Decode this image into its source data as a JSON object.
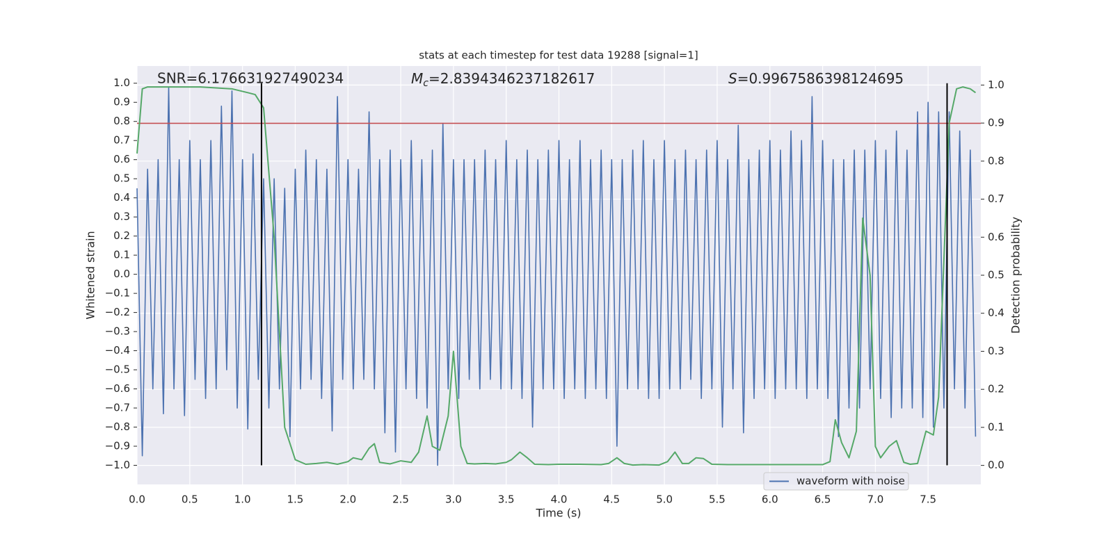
{
  "chart_data": {
    "type": "line",
    "title": "stats at each timestep for test data 19288 [signal=1]",
    "xlabel": "Time (s)",
    "ylabel": "Whitened strain",
    "y2label": "Detection probability",
    "annotations": [
      "SNR=6.176631927490234",
      {
        "symbol": "M",
        "subscript": "c",
        "text": "=2.8394346237182617"
      },
      {
        "symbol": "S",
        "text": "=0.9967586398124695"
      }
    ],
    "xlim": [
      0,
      8
    ],
    "ylim": [
      -1.1,
      1.09
    ],
    "y2lim": [
      -0.05,
      1.05
    ],
    "xticks": [
      {
        "value": 0,
        "label": "0.0"
      },
      {
        "value": 0.5,
        "label": "0.5"
      },
      {
        "value": 1,
        "label": "1.0"
      },
      {
        "value": 1.5,
        "label": "1.5"
      },
      {
        "value": 2,
        "label": "2.0"
      },
      {
        "value": 2.5,
        "label": "2.5"
      },
      {
        "value": 3,
        "label": "3.0"
      },
      {
        "value": 3.5,
        "label": "3.5"
      },
      {
        "value": 4,
        "label": "4.0"
      },
      {
        "value": 4.5,
        "label": "4.5"
      },
      {
        "value": 5,
        "label": "5.0"
      },
      {
        "value": 5.5,
        "label": "5.5"
      },
      {
        "value": 6,
        "label": "6.0"
      },
      {
        "value": 6.5,
        "label": "6.5"
      },
      {
        "value": 7,
        "label": "7.0"
      },
      {
        "value": 7.5,
        "label": "7.5"
      }
    ],
    "yticks": [
      {
        "value": 1,
        "label": "1.0"
      },
      {
        "value": 0.9,
        "label": "0.9"
      },
      {
        "value": 0.8,
        "label": "0.8"
      },
      {
        "value": 0.7,
        "label": "0.7"
      },
      {
        "value": 0.6,
        "label": "0.6"
      },
      {
        "value": 0.5,
        "label": "0.5"
      },
      {
        "value": 0.4,
        "label": "0.4"
      },
      {
        "value": 0.3,
        "label": "0.3"
      },
      {
        "value": 0.2,
        "label": "0.2"
      },
      {
        "value": 0.1,
        "label": "0.1"
      },
      {
        "value": 0,
        "label": "0.0"
      },
      {
        "value": -0.1,
        "label": "−0.1"
      },
      {
        "value": -0.2,
        "label": "−0.2"
      },
      {
        "value": -0.3,
        "label": "−0.3"
      },
      {
        "value": -0.4,
        "label": "−0.4"
      },
      {
        "value": -0.5,
        "label": "−0.5"
      },
      {
        "value": -0.6,
        "label": "−0.6"
      },
      {
        "value": -0.7,
        "label": "−0.7"
      },
      {
        "value": -0.8,
        "label": "−0.8"
      },
      {
        "value": -0.9,
        "label": "−0.9"
      },
      {
        "value": -1,
        "label": "−1.0"
      }
    ],
    "y2ticks": [
      {
        "value": 1,
        "label": "1.0"
      },
      {
        "value": 0.9,
        "label": "0.9"
      },
      {
        "value": 0.8,
        "label": "0.8"
      },
      {
        "value": 0.7,
        "label": "0.7"
      },
      {
        "value": 0.6,
        "label": "0.6"
      },
      {
        "value": 0.5,
        "label": "0.5"
      },
      {
        "value": 0.4,
        "label": "0.4"
      },
      {
        "value": 0.3,
        "label": "0.3"
      },
      {
        "value": 0.2,
        "label": "0.2"
      },
      {
        "value": 0.1,
        "label": "0.1"
      },
      {
        "value": 0,
        "label": "0.0"
      }
    ],
    "grid": true,
    "legend": "lower right",
    "threshold": {
      "value": 0.79,
      "color": "#c44e52"
    },
    "vlines": {
      "x": [
        1.18,
        7.68
      ],
      "ylim": [
        -1,
        1
      ],
      "color": "#000000"
    },
    "series": [
      {
        "name": "waveform with noise",
        "color": "#4c72b0",
        "x": [
          0,
          0.05,
          0.1,
          0.15,
          0.2,
          0.25,
          0.3,
          0.35,
          0.4,
          0.45,
          0.5,
          0.55,
          0.6,
          0.65,
          0.7,
          0.75,
          0.8,
          0.85,
          0.9,
          0.95,
          1,
          1.05,
          1.1,
          1.15,
          1.2,
          1.25,
          1.3,
          1.35,
          1.4,
          1.45,
          1.5,
          1.55,
          1.6,
          1.65,
          1.7,
          1.75,
          1.8,
          1.85,
          1.9,
          1.95,
          2,
          2.05,
          2.1,
          2.15,
          2.2,
          2.25,
          2.3,
          2.35,
          2.4,
          2.45,
          2.5,
          2.55,
          2.6,
          2.65,
          2.7,
          2.75,
          2.8,
          2.85,
          2.9,
          2.95,
          3,
          3.05,
          3.1,
          3.15,
          3.2,
          3.25,
          3.3,
          3.35,
          3.4,
          3.45,
          3.5,
          3.55,
          3.6,
          3.65,
          3.7,
          3.75,
          3.8,
          3.85,
          3.9,
          3.95,
          4,
          4.05,
          4.1,
          4.15,
          4.2,
          4.25,
          4.3,
          4.35,
          4.4,
          4.45,
          4.5,
          4.55,
          4.6,
          4.65,
          4.7,
          4.75,
          4.8,
          4.85,
          4.9,
          4.95,
          5,
          5.05,
          5.1,
          5.15,
          5.2,
          5.25,
          5.3,
          5.35,
          5.4,
          5.45,
          5.5,
          5.55,
          5.6,
          5.65,
          5.7,
          5.75,
          5.8,
          5.85,
          5.9,
          5.95,
          6,
          6.05,
          6.1,
          6.15,
          6.2,
          6.25,
          6.3,
          6.35,
          6.4,
          6.45,
          6.5,
          6.55,
          6.6,
          6.65,
          6.7,
          6.75,
          6.8,
          6.85,
          6.9,
          6.95,
          7,
          7.05,
          7.1,
          7.15,
          7.2,
          7.25,
          7.3,
          7.35,
          7.4,
          7.45,
          7.5,
          7.55,
          7.6,
          7.65,
          7.7,
          7.75,
          7.8,
          7.85,
          7.9,
          7.95
        ],
        "values": [
          0.45,
          -0.95,
          0.55,
          -0.6,
          0.6,
          -0.73,
          0.98,
          -0.6,
          0.6,
          -0.74,
          0.7,
          -0.55,
          0.6,
          -0.65,
          0.7,
          -0.6,
          0.88,
          -0.5,
          0.96,
          -0.7,
          0.6,
          -0.81,
          0.63,
          -0.55,
          0.5,
          -0.7,
          0.5,
          -0.6,
          0.45,
          -0.85,
          0.55,
          -0.6,
          0.65,
          -0.55,
          0.6,
          -0.65,
          0.55,
          -0.82,
          0.93,
          -0.55,
          0.6,
          -0.6,
          0.55,
          -0.55,
          0.85,
          -0.6,
          0.6,
          -0.83,
          0.65,
          -0.93,
          0.6,
          -0.6,
          0.7,
          -0.65,
          0.6,
          -0.7,
          0.65,
          -1.0,
          0.79,
          -0.6,
          0.6,
          -0.65,
          0.6,
          -0.55,
          0.6,
          -0.6,
          0.65,
          -0.55,
          0.6,
          -0.6,
          0.7,
          -0.6,
          0.6,
          -0.65,
          0.65,
          -0.8,
          0.6,
          -0.6,
          0.65,
          -0.6,
          0.7,
          -0.65,
          0.6,
          -0.6,
          0.7,
          -0.65,
          0.6,
          -0.6,
          0.65,
          -0.65,
          0.6,
          -0.9,
          0.6,
          -0.6,
          0.65,
          -0.6,
          0.7,
          -0.65,
          0.6,
          -0.65,
          0.7,
          -0.6,
          0.6,
          -0.6,
          0.65,
          -0.55,
          0.6,
          -0.65,
          0.65,
          -0.6,
          0.7,
          -0.8,
          0.6,
          -0.6,
          0.78,
          -0.83,
          0.6,
          -0.65,
          0.65,
          -0.6,
          0.7,
          -0.65,
          0.65,
          -0.6,
          0.75,
          -0.6,
          0.7,
          -0.65,
          0.93,
          -0.6,
          0.7,
          -0.65,
          0.6,
          -0.85,
          0.6,
          -0.7,
          0.65,
          -0.7,
          0.65,
          -0.6,
          0.7,
          -0.65,
          0.65,
          -0.75,
          0.75,
          -0.7,
          0.65,
          -0.7,
          0.85,
          -0.75,
          0.9,
          -0.8,
          0.85,
          -0.7,
          0.85,
          -0.6,
          0.75,
          -0.7,
          0.65,
          -0.85
        ]
      },
      {
        "color": "#55a868",
        "axis": "y2",
        "x": [
          0,
          0.05,
          0.1,
          0.3,
          0.6,
          0.9,
          1.05,
          1.12,
          1.2,
          1.3,
          1.4,
          1.5,
          1.6,
          1.7,
          1.8,
          1.9,
          2,
          2.05,
          2.13,
          2.2,
          2.25,
          2.3,
          2.4,
          2.5,
          2.6,
          2.67,
          2.75,
          2.8,
          2.87,
          2.95,
          3,
          3.07,
          3.13,
          3.2,
          3.3,
          3.4,
          3.5,
          3.55,
          3.63,
          3.7,
          3.77,
          3.9,
          4,
          4.2,
          4.4,
          4.47,
          4.55,
          4.62,
          4.7,
          4.8,
          4.95,
          5.03,
          5.1,
          5.17,
          5.23,
          5.3,
          5.37,
          5.45,
          5.6,
          6,
          6.5,
          6.57,
          6.62,
          6.68,
          6.75,
          6.82,
          6.88,
          6.95,
          7,
          7.05,
          7.13,
          7.2,
          7.27,
          7.33,
          7.4,
          7.48,
          7.55,
          7.6,
          7.7,
          7.77,
          7.83,
          7.9,
          7.95
        ],
        "values": [
          0.82,
          0.99,
          0.995,
          0.995,
          0.995,
          0.99,
          0.98,
          0.975,
          0.94,
          0.6,
          0.1,
          0.015,
          0.003,
          0.005,
          0.008,
          0.003,
          0.01,
          0.02,
          0.015,
          0.045,
          0.057,
          0.008,
          0.004,
          0.012,
          0.008,
          0.035,
          0.13,
          0.05,
          0.04,
          0.13,
          0.3,
          0.05,
          0.005,
          0.004,
          0.005,
          0.004,
          0.008,
          0.015,
          0.035,
          0.02,
          0.003,
          0.002,
          0.003,
          0.003,
          0.002,
          0.005,
          0.02,
          0.005,
          0.001,
          0.002,
          0.001,
          0.01,
          0.035,
          0.005,
          0.005,
          0.02,
          0.018,
          0.003,
          0.002,
          0.002,
          0.002,
          0.01,
          0.12,
          0.06,
          0.02,
          0.09,
          0.65,
          0.5,
          0.05,
          0.02,
          0.05,
          0.065,
          0.008,
          0.003,
          0.005,
          0.09,
          0.08,
          0.18,
          0.9,
          0.99,
          0.995,
          0.99,
          0.98
        ]
      }
    ]
  }
}
